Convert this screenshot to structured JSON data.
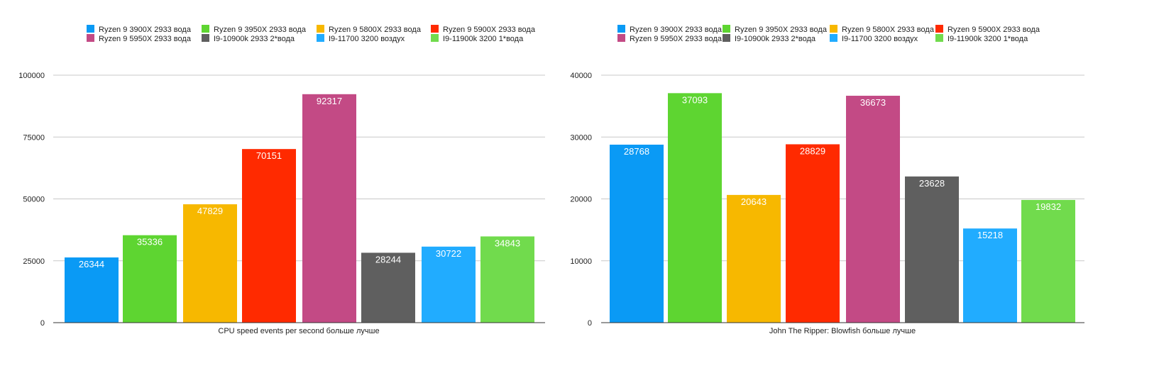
{
  "chart_data": [
    {
      "type": "bar",
      "xlabel": "CPU speed events per second больше лучше",
      "ylim": [
        0,
        100000
      ],
      "yticks": [
        0,
        25000,
        50000,
        75000,
        100000
      ],
      "yticklabels": [
        "0",
        "25000",
        "50000",
        "75000",
        "100000"
      ],
      "grid": true,
      "legend_position": "top",
      "series": [
        {
          "name": "Ryzen 9 3900X 2933 вода",
          "value": 26344,
          "color": "#0a9af5"
        },
        {
          "name": "Ryzen 9 3950X 2933 вода",
          "value": 35336,
          "color": "#5ed531"
        },
        {
          "name": "Ryzen 9 5800X 2933 вода",
          "value": 47829,
          "color": "#f7b800"
        },
        {
          "name": "Ryzen 9 5900X 2933 вода",
          "value": 70151,
          "color": "#ff2a00"
        },
        {
          "name": "Ryzen 9 5950X 2933 вода",
          "value": 92317,
          "color": "#c34a85"
        },
        {
          "name": "I9-10900k 2933 2*вода",
          "value": 28244,
          "color": "#5f5f5f"
        },
        {
          "name": "I9-11700 3200 воздух",
          "value": 30722,
          "color": "#21acff"
        },
        {
          "name": "I9-11900k 3200 1*вода",
          "value": 34843,
          "color": "#71db4d"
        }
      ]
    },
    {
      "type": "bar",
      "xlabel": "John The Ripper: Blowfish больше лучше",
      "ylim": [
        0,
        40000
      ],
      "yticks": [
        0,
        10000,
        20000,
        30000,
        40000
      ],
      "yticklabels": [
        "0",
        "10000",
        "20000",
        "30000",
        "40000"
      ],
      "grid": true,
      "legend_position": "top",
      "series": [
        {
          "name": "Ryzen 9 3900X 2933 вода",
          "value": 28768,
          "color": "#0a9af5"
        },
        {
          "name": "Ryzen 9 3950X 2933 вода",
          "value": 37093,
          "color": "#5ed531"
        },
        {
          "name": "Ryzen 9 5800X 2933 вода",
          "value": 20643,
          "color": "#f7b800"
        },
        {
          "name": "Ryzen 9 5900X 2933 вода",
          "value": 28829,
          "color": "#ff2a00"
        },
        {
          "name": "Ryzen 9 5950X 2933 вода",
          "value": 36673,
          "color": "#c34a85"
        },
        {
          "name": "I9-10900k 2933 2*вода",
          "value": 23628,
          "color": "#5f5f5f"
        },
        {
          "name": "I9-11700 3200 воздух",
          "value": 15218,
          "color": "#21acff"
        },
        {
          "name": "I9-11900k 3200 1*вода",
          "value": 19832,
          "color": "#71db4d"
        }
      ]
    }
  ]
}
